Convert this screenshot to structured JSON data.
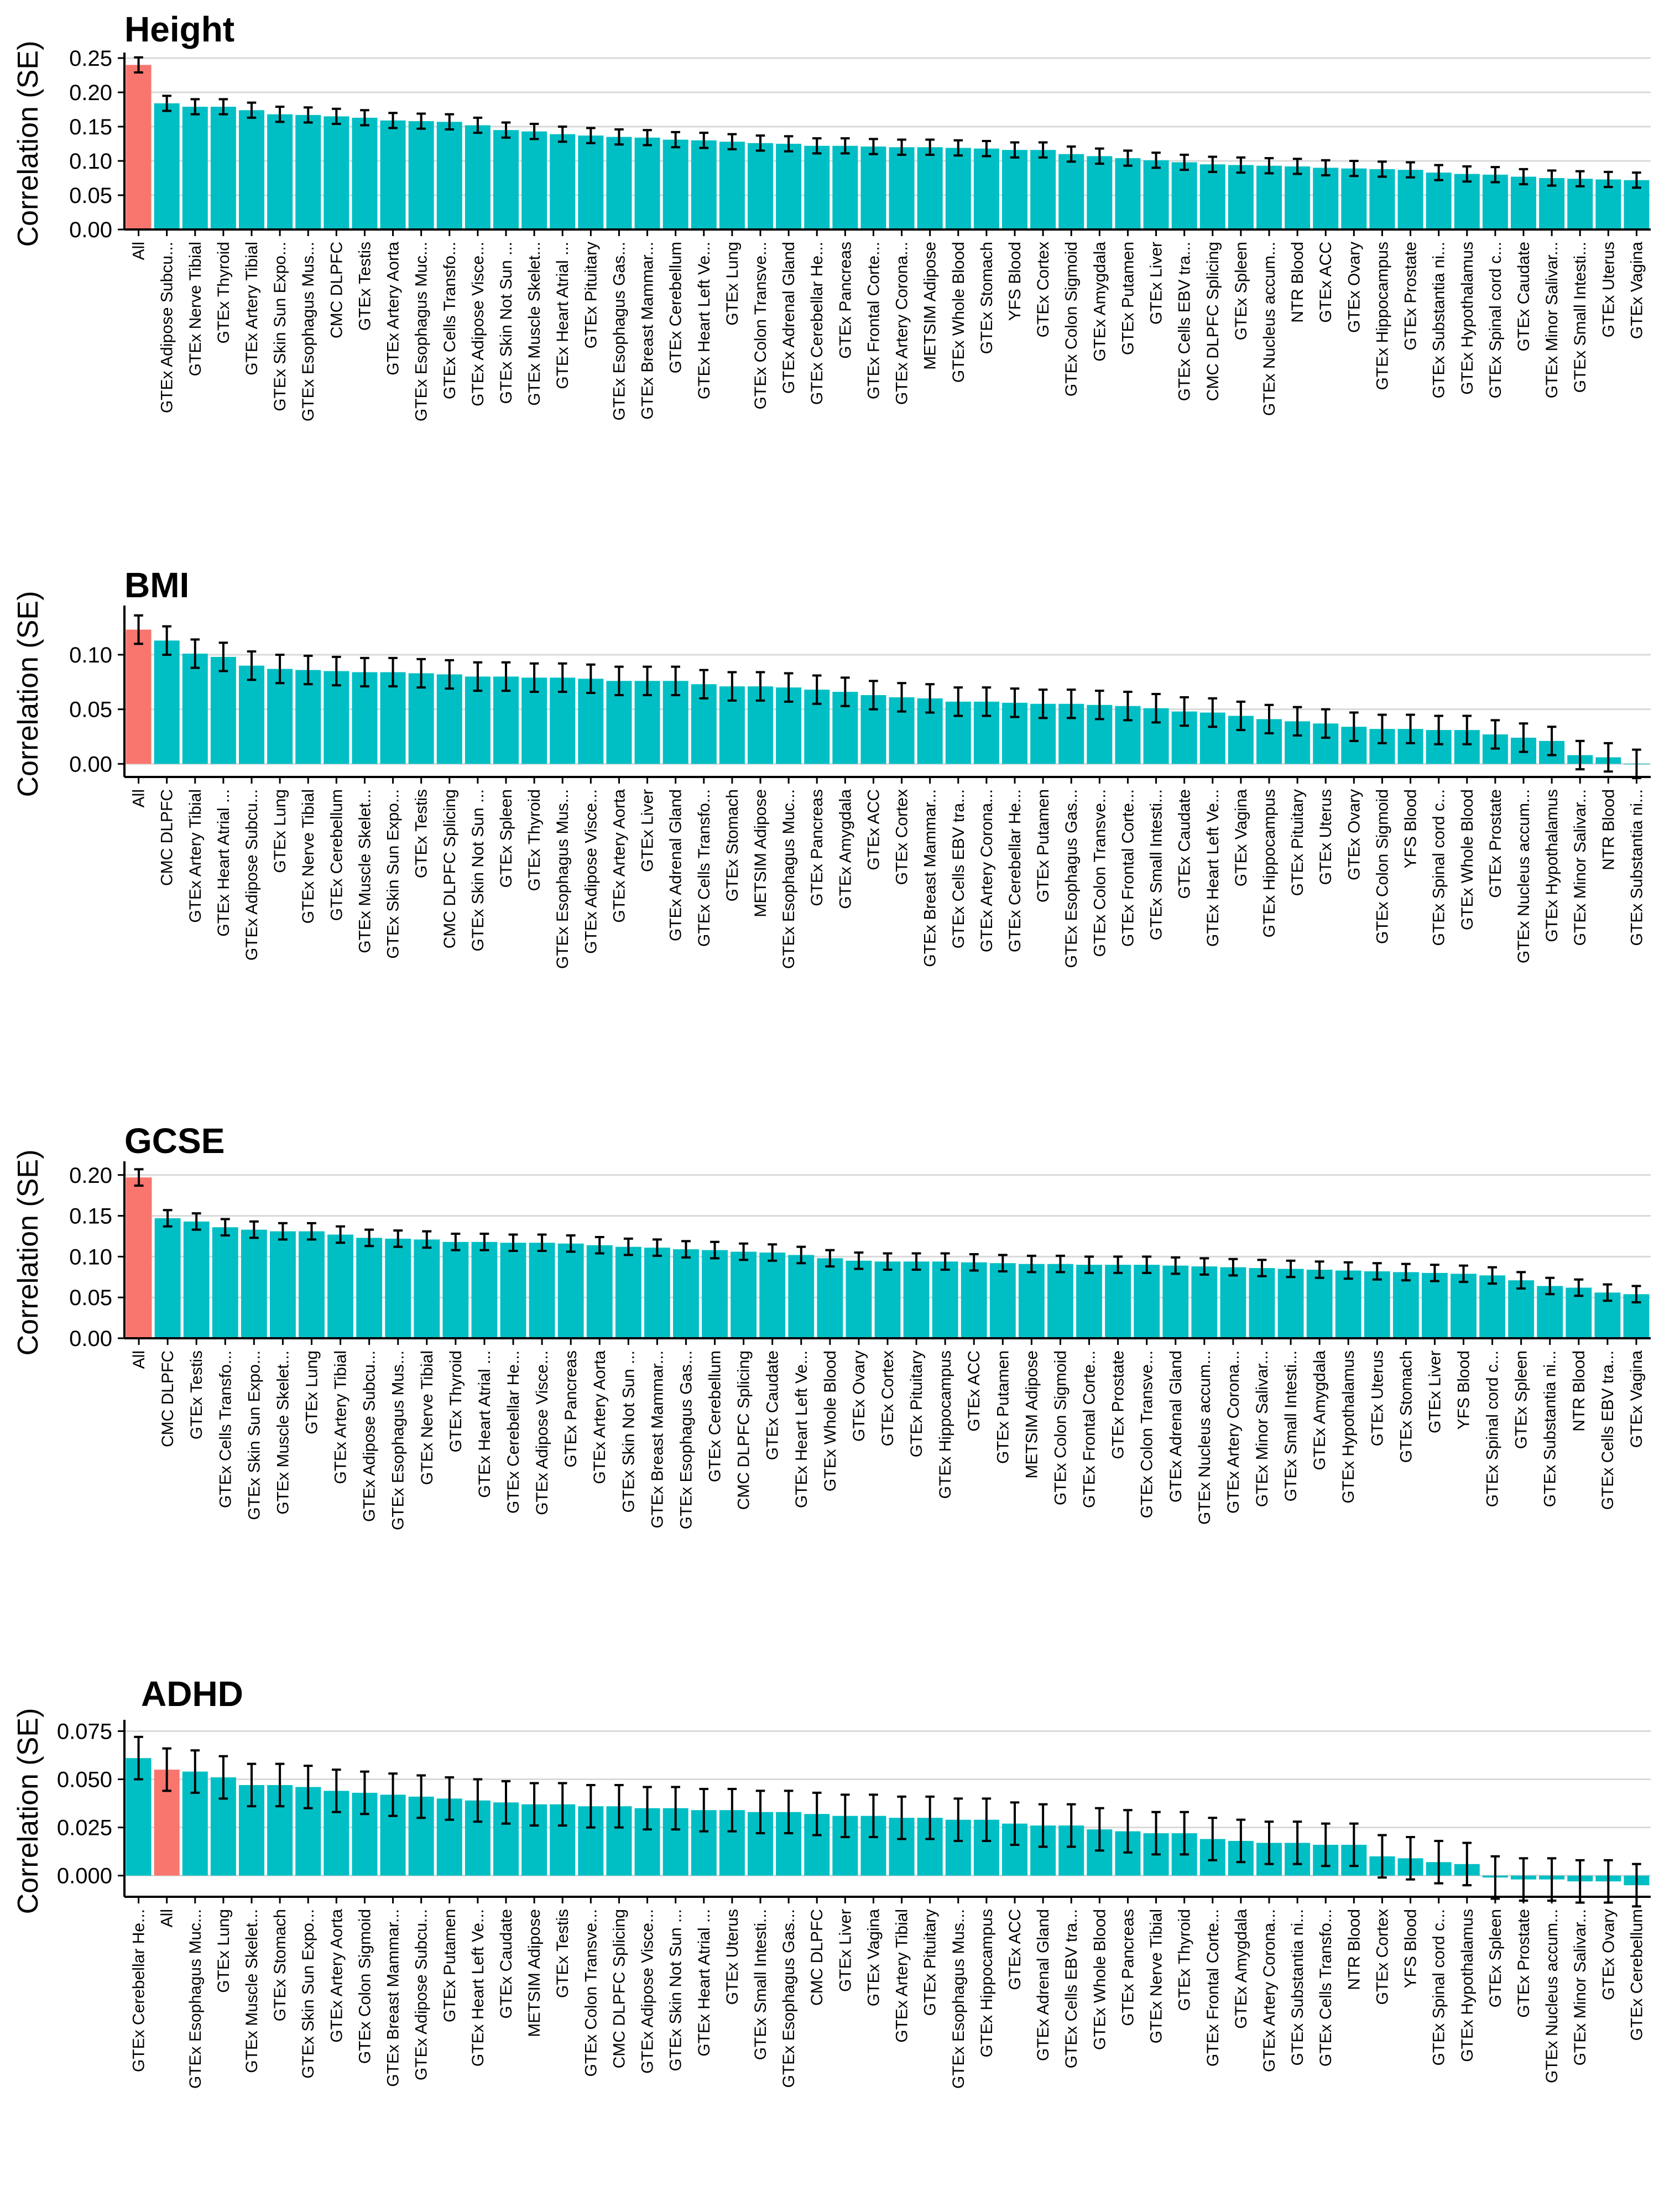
{
  "chart_data": [
    {
      "type": "bar",
      "title": "Height",
      "ylabel": "Correlation (SE)",
      "ylim": [
        0,
        0.25
      ],
      "yticks": [
        0.0,
        0.05,
        0.1,
        0.15,
        0.2,
        0.25
      ],
      "tick_format": 2,
      "highlight_category": "All",
      "colors": {
        "highlight": "#F8766D",
        "default": "#00BFC4",
        "grid": "#d9d9d9",
        "axis": "#000000"
      },
      "categories": [
        "All",
        "GTEx Adipose Subcu...",
        "GTEx Nerve Tibial",
        "GTEx Thyroid",
        "GTEx Artery Tibial",
        "GTEx Skin Sun Expo...",
        "GTEx Esophagus Mus...",
        "CMC DLPFC",
        "GTEx Testis",
        "GTEx Artery Aorta",
        "GTEx Esophagus Muc...",
        "GTEx Cells Transfo...",
        "GTEx Adipose Visce...",
        "GTEx Skin Not Sun ...",
        "GTEx Muscle Skelet...",
        "GTEx Heart Atrial ...",
        "GTEx Pituitary",
        "GTEx Esophagus Gas...",
        "GTEx Breast Mammar...",
        "GTEx Cerebellum",
        "GTEx Heart Left Ve...",
        "GTEx Lung",
        "GTEx Colon Transve...",
        "GTEx Adrenal Gland",
        "GTEx Cerebellar He...",
        "GTEx Pancreas",
        "GTEx Frontal Corte...",
        "GTEx Artery Corona...",
        "METSIM Adipose",
        "GTEx Whole Blood",
        "GTEx Stomach",
        "YFS Blood",
        "GTEx Cortex",
        "GTEx Colon Sigmoid",
        "GTEx Amygdala",
        "GTEx Putamen",
        "GTEx Liver",
        "GTEx Cells EBV tra...",
        "CMC DLPFC Splicing",
        "GTEx Spleen",
        "GTEx Nucleus accum...",
        "NTR Blood",
        "GTEx ACC",
        "GTEx Ovary",
        "GTEx Hippocampus",
        "GTEx Prostate",
        "GTEx Substantia ni...",
        "GTEx Hypothalamus",
        "GTEx Spinal cord c...",
        "GTEx Caudate",
        "GTEx Minor Salivar...",
        "GTEx Small Intesti...",
        "GTEx Uterus",
        "GTEx Vagina"
      ],
      "values": [
        0.24,
        0.184,
        0.179,
        0.179,
        0.174,
        0.168,
        0.167,
        0.165,
        0.163,
        0.159,
        0.158,
        0.157,
        0.152,
        0.145,
        0.143,
        0.139,
        0.137,
        0.135,
        0.134,
        0.131,
        0.13,
        0.128,
        0.126,
        0.125,
        0.122,
        0.122,
        0.121,
        0.12,
        0.12,
        0.119,
        0.118,
        0.116,
        0.116,
        0.11,
        0.107,
        0.104,
        0.101,
        0.098,
        0.095,
        0.094,
        0.093,
        0.092,
        0.09,
        0.089,
        0.088,
        0.087,
        0.083,
        0.081,
        0.08,
        0.077,
        0.075,
        0.074,
        0.073,
        0.072
      ],
      "errors": [
        0.011,
        0.011,
        0.011,
        0.011,
        0.011,
        0.011,
        0.011,
        0.011,
        0.011,
        0.011,
        0.011,
        0.011,
        0.011,
        0.011,
        0.011,
        0.011,
        0.011,
        0.011,
        0.011,
        0.011,
        0.011,
        0.011,
        0.011,
        0.011,
        0.011,
        0.011,
        0.011,
        0.011,
        0.011,
        0.011,
        0.011,
        0.011,
        0.011,
        0.011,
        0.011,
        0.011,
        0.011,
        0.011,
        0.011,
        0.011,
        0.011,
        0.011,
        0.011,
        0.011,
        0.011,
        0.011,
        0.011,
        0.011,
        0.011,
        0.011,
        0.011,
        0.011,
        0.011,
        0.011
      ]
    },
    {
      "type": "bar",
      "title": "BMI",
      "ylabel": "Correlation (SE)",
      "ylim": [
        -0.012,
        0.14
      ],
      "yticks": [
        0.0,
        0.05,
        0.1
      ],
      "tick_format": 2,
      "highlight_category": "All",
      "colors": {
        "highlight": "#F8766D",
        "default": "#00BFC4",
        "grid": "#d9d9d9",
        "axis": "#000000"
      },
      "categories": [
        "All",
        "CMC DLPFC",
        "GTEx Artery Tibial",
        "GTEx Heart Atrial ...",
        "GTEx Adipose Subcu...",
        "GTEx Lung",
        "GTEx Nerve Tibial",
        "GTEx Cerebellum",
        "GTEx Muscle Skelet...",
        "GTEx Skin Sun Expo...",
        "GTEx Testis",
        "CMC DLPFC Splicing",
        "GTEx Skin Not Sun ...",
        "GTEx Spleen",
        "GTEx Thyroid",
        "GTEx Esophagus Mus...",
        "GTEx Adipose Visce...",
        "GTEx Artery Aorta",
        "GTEx Liver",
        "GTEx Adrenal Gland",
        "GTEx Cells Transfo...",
        "GTEx Stomach",
        "METSIM Adipose",
        "GTEx Esophagus Muc...",
        "GTEx Pancreas",
        "GTEx Amygdala",
        "GTEx ACC",
        "GTEx Cortex",
        "GTEx Breast Mammar...",
        "GTEx Cells EBV tra...",
        "GTEx Artery Corona...",
        "GTEx Cerebellar He...",
        "GTEx Putamen",
        "GTEx Esophagus Gas...",
        "GTEx Colon Transve...",
        "GTEx Frontal Corte...",
        "GTEx Small Intesti...",
        "GTEx Caudate",
        "GTEx Heart Left Ve...",
        "GTEx Vagina",
        "GTEx Hippocampus",
        "GTEx Pituitary",
        "GTEx Uterus",
        "GTEx Ovary",
        "GTEx Colon Sigmoid",
        "YFS Blood",
        "GTEx Spinal cord c...",
        "GTEx Whole Blood",
        "GTEx Prostate",
        "GTEx Nucleus accum...",
        "GTEx Hypothalamus",
        "GTEx Minor Salivar...",
        "NTR Blood",
        "GTEx Substantia ni..."
      ],
      "values": [
        0.123,
        0.113,
        0.101,
        0.098,
        0.09,
        0.087,
        0.086,
        0.085,
        0.084,
        0.084,
        0.083,
        0.082,
        0.08,
        0.08,
        0.079,
        0.079,
        0.078,
        0.076,
        0.076,
        0.076,
        0.073,
        0.071,
        0.071,
        0.07,
        0.068,
        0.066,
        0.063,
        0.061,
        0.06,
        0.057,
        0.057,
        0.056,
        0.055,
        0.055,
        0.054,
        0.053,
        0.051,
        0.048,
        0.047,
        0.044,
        0.041,
        0.039,
        0.037,
        0.034,
        0.032,
        0.032,
        0.031,
        0.031,
        0.027,
        0.024,
        0.021,
        0.008,
        0.006,
        0.0
      ],
      "errors": [
        0.013,
        0.013,
        0.013,
        0.013,
        0.013,
        0.013,
        0.013,
        0.013,
        0.013,
        0.013,
        0.013,
        0.013,
        0.013,
        0.013,
        0.013,
        0.013,
        0.013,
        0.013,
        0.013,
        0.013,
        0.013,
        0.013,
        0.013,
        0.013,
        0.013,
        0.013,
        0.013,
        0.013,
        0.013,
        0.013,
        0.013,
        0.013,
        0.013,
        0.013,
        0.013,
        0.013,
        0.013,
        0.013,
        0.013,
        0.013,
        0.013,
        0.013,
        0.013,
        0.013,
        0.013,
        0.013,
        0.013,
        0.013,
        0.013,
        0.013,
        0.013,
        0.013,
        0.013,
        0.013
      ]
    },
    {
      "type": "bar",
      "title": "GCSE",
      "ylabel": "Correlation (SE)",
      "ylim": [
        0,
        0.21
      ],
      "yticks": [
        0.0,
        0.05,
        0.1,
        0.15,
        0.2
      ],
      "tick_format": 2,
      "highlight_category": "All",
      "colors": {
        "highlight": "#F8766D",
        "default": "#00BFC4",
        "grid": "#d9d9d9",
        "axis": "#000000"
      },
      "categories": [
        "All",
        "CMC DLPFC",
        "GTEx Testis",
        "GTEx Cells Transfo...",
        "GTEx Skin Sun Expo...",
        "GTEx Muscle Skelet...",
        "GTEx Lung",
        "GTEx Artery Tibial",
        "GTEx Adipose Subcu...",
        "GTEx Esophagus Mus...",
        "GTEx Nerve Tibial",
        "GTEx Thyroid",
        "GTEx Heart Atrial ...",
        "GTEx Cerebellar He...",
        "GTEx Adipose Visce...",
        "GTEx Pancreas",
        "GTEx Artery Aorta",
        "GTEx Skin Not Sun ...",
        "GTEx Breast Mammar...",
        "GTEx Esophagus Gas...",
        "GTEx Cerebellum",
        "CMC DLPFC Splicing",
        "GTEx Caudate",
        "GTEx Heart Left Ve...",
        "GTEx Whole Blood",
        "GTEx Ovary",
        "GTEx Cortex",
        "GTEx Pituitary",
        "GTEx Hippocampus",
        "GTEx ACC",
        "GTEx Putamen",
        "METSIM Adipose",
        "GTEx Colon Sigmoid",
        "GTEx Frontal Corte...",
        "GTEx Prostate",
        "GTEx Colon Transve...",
        "GTEx Adrenal Gland",
        "GTEx Nucleus accum...",
        "GTEx Artery Corona...",
        "GTEx Minor Salivar...",
        "GTEx Small Intesti...",
        "GTEx Amygdala",
        "GTEx Hypothalamus",
        "GTEx Uterus",
        "GTEx Stomach",
        "GTEx Liver",
        "YFS Blood",
        "GTEx Spinal cord c...",
        "GTEx Spleen",
        "GTEx Substantia ni...",
        "NTR Blood",
        "GTEx Cells EBV tra...",
        "GTEx Vagina"
      ],
      "values": [
        0.197,
        0.147,
        0.143,
        0.136,
        0.133,
        0.131,
        0.131,
        0.127,
        0.123,
        0.122,
        0.121,
        0.118,
        0.118,
        0.117,
        0.117,
        0.116,
        0.114,
        0.112,
        0.111,
        0.109,
        0.108,
        0.106,
        0.105,
        0.102,
        0.098,
        0.095,
        0.094,
        0.094,
        0.094,
        0.093,
        0.092,
        0.091,
        0.091,
        0.09,
        0.09,
        0.09,
        0.089,
        0.088,
        0.087,
        0.086,
        0.085,
        0.084,
        0.083,
        0.082,
        0.081,
        0.08,
        0.079,
        0.077,
        0.071,
        0.064,
        0.062,
        0.056,
        0.054
      ],
      "errors": [
        0.01,
        0.01,
        0.01,
        0.01,
        0.01,
        0.01,
        0.01,
        0.01,
        0.01,
        0.01,
        0.01,
        0.01,
        0.01,
        0.01,
        0.01,
        0.01,
        0.01,
        0.01,
        0.01,
        0.01,
        0.01,
        0.01,
        0.01,
        0.01,
        0.01,
        0.01,
        0.01,
        0.01,
        0.01,
        0.01,
        0.01,
        0.01,
        0.01,
        0.01,
        0.01,
        0.01,
        0.01,
        0.01,
        0.01,
        0.01,
        0.01,
        0.01,
        0.01,
        0.01,
        0.01,
        0.01,
        0.01,
        0.01,
        0.01,
        0.01,
        0.01,
        0.01,
        0.01
      ]
    },
    {
      "type": "bar",
      "title": "ADHD",
      "ylabel": "Correlation (SE)",
      "ylim": [
        -0.011,
        0.078
      ],
      "yticks": [
        0.0,
        0.025,
        0.05,
        0.075
      ],
      "tick_format": 3,
      "highlight_category": "All",
      "colors": {
        "highlight": "#F8766D",
        "default": "#00BFC4",
        "grid": "#d9d9d9",
        "axis": "#000000"
      },
      "categories": [
        "GTEx Cerebellar He...",
        "All",
        "GTEx Esophagus Muc...",
        "GTEx Lung",
        "GTEx Muscle Skelet...",
        "GTEx Stomach",
        "GTEx Skin Sun Expo...",
        "GTEx Artery Aorta",
        "GTEx Colon Sigmoid",
        "GTEx Breast Mammar...",
        "GTEx Adipose Subcu...",
        "GTEx Putamen",
        "GTEx Heart Left Ve...",
        "GTEx Caudate",
        "METSIM Adipose",
        "GTEx Testis",
        "GTEx Colon Transve...",
        "CMC DLPFC Splicing",
        "GTEx Adipose Visce...",
        "GTEx Skin Not Sun ...",
        "GTEx Heart Atrial ...",
        "GTEx Uterus",
        "GTEx Small Intesti...",
        "GTEx Esophagus Gas...",
        "CMC DLPFC",
        "GTEx Liver",
        "GTEx Vagina",
        "GTEx Artery Tibial",
        "GTEx Pituitary",
        "GTEx Esophagus Mus...",
        "GTEx Hippocampus",
        "GTEx ACC",
        "GTEx Adrenal Gland",
        "GTEx Cells EBV tra...",
        "GTEx Whole Blood",
        "GTEx Pancreas",
        "GTEx Nerve Tibial",
        "GTEx Thyroid",
        "GTEx Frontal Corte...",
        "GTEx Amygdala",
        "GTEx Artery Corona...",
        "GTEx Substantia ni...",
        "GTEx Cells Transfo...",
        "NTR Blood",
        "GTEx Cortex",
        "YFS Blood",
        "GTEx Spinal cord c...",
        "GTEx Hypothalamus",
        "GTEx Spleen",
        "GTEx Prostate",
        "GTEx Nucleus accum...",
        "GTEx Minor Salivar...",
        "GTEx Ovary",
        "GTEx Cerebellum"
      ],
      "values": [
        0.061,
        0.055,
        0.054,
        0.051,
        0.047,
        0.047,
        0.046,
        0.044,
        0.043,
        0.042,
        0.041,
        0.04,
        0.039,
        0.038,
        0.037,
        0.037,
        0.036,
        0.036,
        0.035,
        0.035,
        0.034,
        0.034,
        0.033,
        0.033,
        0.032,
        0.031,
        0.031,
        0.03,
        0.03,
        0.029,
        0.029,
        0.027,
        0.026,
        0.026,
        0.024,
        0.023,
        0.022,
        0.022,
        0.019,
        0.018,
        0.017,
        0.017,
        0.016,
        0.016,
        0.01,
        0.009,
        0.007,
        0.006,
        -0.001,
        -0.002,
        -0.002,
        -0.003,
        -0.003,
        -0.005
      ],
      "errors": [
        0.011,
        0.011,
        0.011,
        0.011,
        0.011,
        0.011,
        0.011,
        0.011,
        0.011,
        0.011,
        0.011,
        0.011,
        0.011,
        0.011,
        0.011,
        0.011,
        0.011,
        0.011,
        0.011,
        0.011,
        0.011,
        0.011,
        0.011,
        0.011,
        0.011,
        0.011,
        0.011,
        0.011,
        0.011,
        0.011,
        0.011,
        0.011,
        0.011,
        0.011,
        0.011,
        0.011,
        0.011,
        0.011,
        0.011,
        0.011,
        0.011,
        0.011,
        0.011,
        0.011,
        0.011,
        0.011,
        0.011,
        0.011,
        0.011,
        0.011,
        0.011,
        0.011,
        0.011,
        0.011
      ]
    }
  ]
}
